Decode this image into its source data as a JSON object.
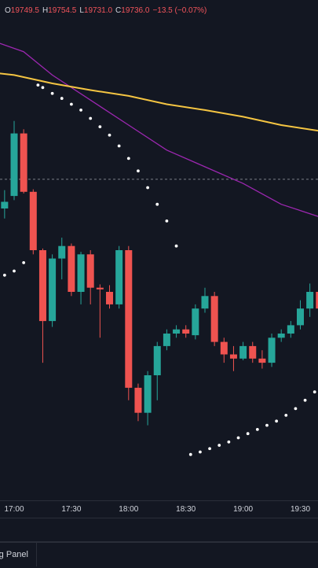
{
  "ohlc": {
    "open_label": "O",
    "open": "19749.5",
    "high_label": "H",
    "high": "19754.5",
    "low_label": "L",
    "low": "19731.0",
    "close_label": "C",
    "close": "19736.0",
    "change": "−13.5 (−0.07%)"
  },
  "colors": {
    "background": "#131722",
    "up": "#26a69a",
    "down": "#ef5350",
    "ma_slow": "#f5c542",
    "ma_fast": "#9c27b0",
    "psar": "#ffffff",
    "price_line": "#9598a1"
  },
  "x_axis": {
    "ticks": [
      {
        "label": "17:00",
        "t": 0
      },
      {
        "label": "17:30",
        "t": 6
      },
      {
        "label": "18:00",
        "t": 12
      },
      {
        "label": "18:30",
        "t": 18
      },
      {
        "label": "19:00",
        "t": 24
      },
      {
        "label": "19:30",
        "t": 30
      }
    ]
  },
  "bottom_bar": {
    "panel_tab_label": "Trading Panel"
  },
  "chart_data": {
    "type": "candlestick",
    "interval": "5m",
    "y_range": [
      19715,
      19775
    ],
    "current_price": 19753.5,
    "x_start": -1.5,
    "x_end": 32,
    "candles": [
      {
        "t": -1,
        "o": 19750.0,
        "h": 19752.2,
        "l": 19748.8,
        "c": 19750.8
      },
      {
        "t": 0,
        "o": 19751.5,
        "h": 19760.5,
        "l": 19751.0,
        "c": 19759.0
      },
      {
        "t": 1,
        "o": 19759.0,
        "h": 19759.5,
        "l": 19751.8,
        "c": 19752.0
      },
      {
        "t": 2,
        "o": 19752.0,
        "h": 19752.3,
        "l": 19744.5,
        "c": 19745.0
      },
      {
        "t": 3,
        "o": 19745.0,
        "h": 19745.2,
        "l": 19731.5,
        "c": 19736.5
      },
      {
        "t": 4,
        "o": 19736.5,
        "h": 19744.5,
        "l": 19735.8,
        "c": 19744.0
      },
      {
        "t": 5,
        "o": 19744.0,
        "h": 19746.5,
        "l": 19741.5,
        "c": 19745.5
      },
      {
        "t": 6,
        "o": 19745.5,
        "h": 19745.8,
        "l": 19739.5,
        "c": 19740.0
      },
      {
        "t": 7,
        "o": 19740.0,
        "h": 19744.8,
        "l": 19738.5,
        "c": 19744.5
      },
      {
        "t": 8,
        "o": 19744.5,
        "h": 19745.0,
        "l": 19738.5,
        "c": 19740.5
      },
      {
        "t": 9,
        "o": 19740.5,
        "h": 19740.9,
        "l": 19734.5,
        "c": 19740.3
      },
      {
        "t": 10,
        "o": 19740.0,
        "h": 19740.8,
        "l": 19738.0,
        "c": 19738.5
      },
      {
        "t": 11,
        "o": 19738.5,
        "h": 19745.5,
        "l": 19738.0,
        "c": 19745.0
      },
      {
        "t": 12,
        "o": 19745.0,
        "h": 19745.5,
        "l": 19727.0,
        "c": 19728.5
      },
      {
        "t": 13,
        "o": 19728.5,
        "h": 19729.0,
        "l": 19724.5,
        "c": 19725.5
      },
      {
        "t": 14,
        "o": 19725.5,
        "h": 19730.5,
        "l": 19724.0,
        "c": 19730.0
      },
      {
        "t": 15,
        "o": 19730.0,
        "h": 19734.0,
        "l": 19727.0,
        "c": 19733.5
      },
      {
        "t": 16,
        "o": 19733.5,
        "h": 19735.5,
        "l": 19733.0,
        "c": 19735.0
      },
      {
        "t": 17,
        "o": 19735.0,
        "h": 19736.0,
        "l": 19734.5,
        "c": 19735.5
      },
      {
        "t": 18,
        "o": 19735.5,
        "h": 19736.0,
        "l": 19734.5,
        "c": 19735.0
      },
      {
        "t": 19,
        "o": 19734.8,
        "h": 19738.5,
        "l": 19734.3,
        "c": 19738.0
      },
      {
        "t": 20,
        "o": 19738.0,
        "h": 19740.5,
        "l": 19737.5,
        "c": 19739.5
      },
      {
        "t": 21,
        "o": 19739.5,
        "h": 19740.0,
        "l": 19733.5,
        "c": 19734.0
      },
      {
        "t": 22,
        "o": 19734.0,
        "h": 19734.5,
        "l": 19731.5,
        "c": 19732.5
      },
      {
        "t": 23,
        "o": 19732.5,
        "h": 19733.5,
        "l": 19730.5,
        "c": 19732.0
      },
      {
        "t": 24,
        "o": 19732.0,
        "h": 19734.0,
        "l": 19731.8,
        "c": 19733.5
      },
      {
        "t": 25,
        "o": 19733.5,
        "h": 19734.0,
        "l": 19731.5,
        "c": 19732.0
      },
      {
        "t": 26,
        "o": 19732.0,
        "h": 19733.0,
        "l": 19730.8,
        "c": 19731.5
      },
      {
        "t": 27,
        "o": 19731.5,
        "h": 19735.0,
        "l": 19731.0,
        "c": 19734.5
      },
      {
        "t": 28,
        "o": 19734.5,
        "h": 19735.5,
        "l": 19734.0,
        "c": 19735.0
      },
      {
        "t": 29,
        "o": 19735.0,
        "h": 19736.5,
        "l": 19734.5,
        "c": 19736.0
      },
      {
        "t": 30,
        "o": 19736.0,
        "h": 19739.0,
        "l": 19735.5,
        "c": 19738.0
      },
      {
        "t": 31,
        "o": 19738.0,
        "h": 19741.0,
        "l": 19737.0,
        "c": 19740.0
      },
      {
        "t": 32,
        "o": 19740.0,
        "h": 19740.5,
        "l": 19737.5,
        "c": 19738.0
      }
    ],
    "ma_slow": [
      {
        "t": -1.5,
        "v": 19766.2
      },
      {
        "t": 0,
        "v": 19766.0
      },
      {
        "t": 4,
        "v": 19765.0
      },
      {
        "t": 8,
        "v": 19764.2
      },
      {
        "t": 12,
        "v": 19763.5
      },
      {
        "t": 16,
        "v": 19762.5
      },
      {
        "t": 20,
        "v": 19761.8
      },
      {
        "t": 24,
        "v": 19761.0
      },
      {
        "t": 28,
        "v": 19760.0
      },
      {
        "t": 32,
        "v": 19759.3
      }
    ],
    "ma_fast": [
      {
        "t": -1.5,
        "v": 19769.8
      },
      {
        "t": 1,
        "v": 19768.8
      },
      {
        "t": 4,
        "v": 19766.0
      },
      {
        "t": 8,
        "v": 19763.0
      },
      {
        "t": 12,
        "v": 19760.0
      },
      {
        "t": 16,
        "v": 19757.0
      },
      {
        "t": 20,
        "v": 19755.0
      },
      {
        "t": 24,
        "v": 19753.0
      },
      {
        "t": 28,
        "v": 19750.5
      },
      {
        "t": 32,
        "v": 19749.0
      }
    ],
    "psar": [
      {
        "t": -1,
        "v": 19742.0
      },
      {
        "t": 0,
        "v": 19742.5
      },
      {
        "t": 1,
        "v": 19743.5
      },
      {
        "t": 2.5,
        "v": 19764.8
      },
      {
        "t": 3,
        "v": 19764.5
      },
      {
        "t": 4,
        "v": 19763.8
      },
      {
        "t": 5,
        "v": 19763.2
      },
      {
        "t": 6,
        "v": 19762.5
      },
      {
        "t": 7,
        "v": 19761.8
      },
      {
        "t": 8,
        "v": 19760.8
      },
      {
        "t": 9,
        "v": 19759.8
      },
      {
        "t": 10,
        "v": 19758.8
      },
      {
        "t": 11,
        "v": 19757.5
      },
      {
        "t": 12,
        "v": 19756.0
      },
      {
        "t": 13,
        "v": 19754.5
      },
      {
        "t": 14,
        "v": 19752.5
      },
      {
        "t": 15,
        "v": 19750.5
      },
      {
        "t": 16,
        "v": 19748.5
      },
      {
        "t": 17,
        "v": 19745.5
      },
      {
        "t": 18.5,
        "v": 19720.5
      },
      {
        "t": 19.5,
        "v": 19720.8
      },
      {
        "t": 20.5,
        "v": 19721.2
      },
      {
        "t": 21.5,
        "v": 19721.6
      },
      {
        "t": 22.5,
        "v": 19722.0
      },
      {
        "t": 23.5,
        "v": 19722.5
      },
      {
        "t": 24.5,
        "v": 19723.0
      },
      {
        "t": 25.5,
        "v": 19723.5
      },
      {
        "t": 26.5,
        "v": 19724.0
      },
      {
        "t": 27.5,
        "v": 19724.5
      },
      {
        "t": 28.5,
        "v": 19725.2
      },
      {
        "t": 29.5,
        "v": 19726.0
      },
      {
        "t": 30.5,
        "v": 19727.0
      },
      {
        "t": 31.5,
        "v": 19728.0
      },
      {
        "t": 32.5,
        "v": 19729.0
      }
    ]
  }
}
